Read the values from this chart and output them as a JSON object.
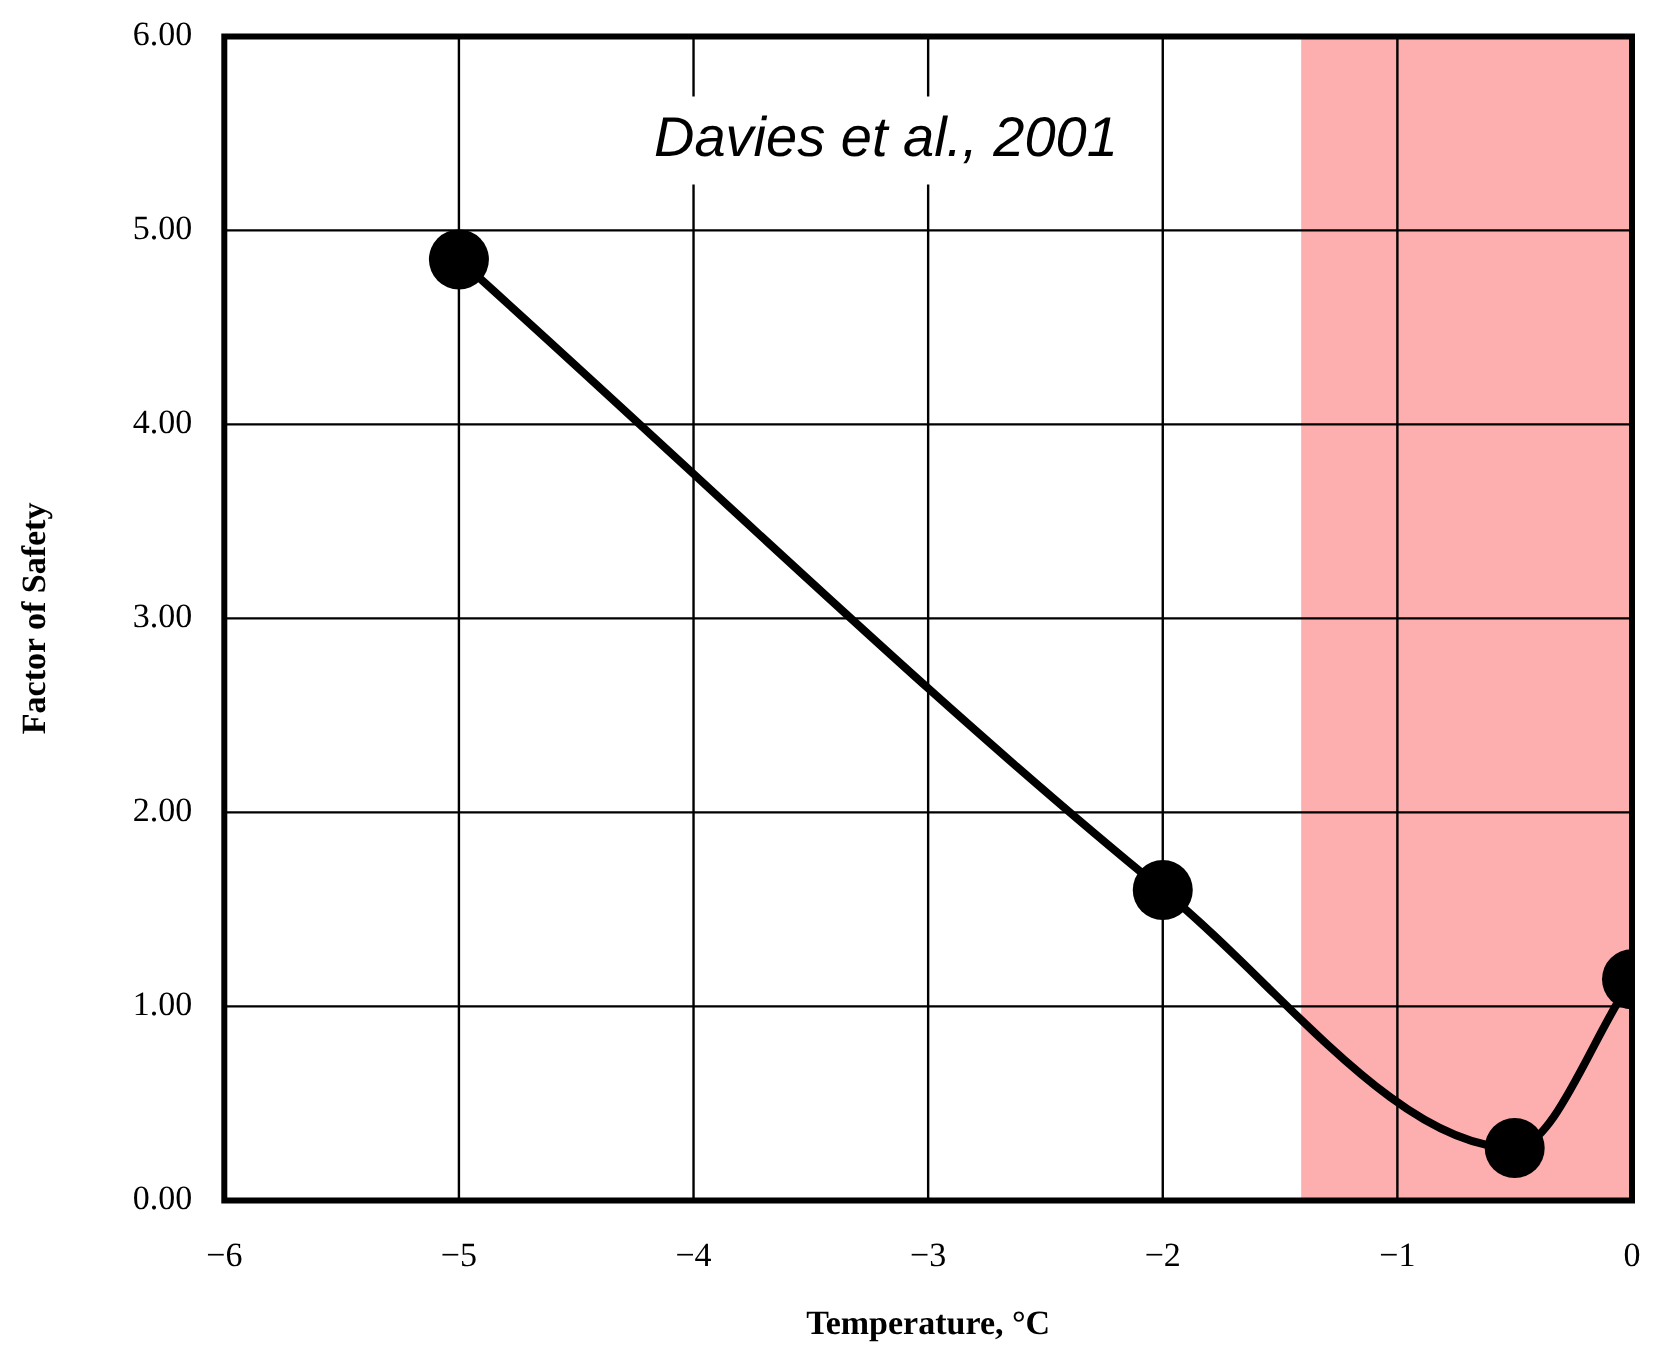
{
  "chart_data": {
    "type": "line",
    "xlabel": "Temperature, °C",
    "ylabel": "Factor of Safety",
    "annotations": [
      "Davies et al., 2001"
    ],
    "x": [
      -5,
      -2,
      -0.5,
      0
    ],
    "series": [
      {
        "color": "#000000",
        "values": [
          4.85,
          1.6,
          0.27,
          1.14
        ]
      }
    ],
    "xlim": [
      -6,
      0
    ],
    "ylim": [
      0,
      6
    ],
    "xticks": [
      {
        "value": -6,
        "label": "−6"
      },
      {
        "value": -5,
        "label": "−5"
      },
      {
        "value": -4,
        "label": "−4"
      },
      {
        "value": -3,
        "label": "−3"
      },
      {
        "value": -2,
        "label": "−2"
      },
      {
        "value": -1,
        "label": "−1"
      },
      0
    ],
    "yticks": [
      {
        "value": 0,
        "label": "0.00"
      },
      {
        "value": 1,
        "label": "1.00"
      },
      {
        "value": 2,
        "label": "2.00"
      },
      {
        "value": 3,
        "label": "3.00"
      },
      {
        "value": 4,
        "label": "4.00"
      },
      {
        "value": 5,
        "label": "5.00"
      },
      {
        "value": 6,
        "label": "6.00"
      }
    ],
    "bands": [
      {
        "axis": "x",
        "from": -1.41,
        "to": 0,
        "color": "#fdaeae"
      }
    ],
    "grid": true,
    "marker": "circle",
    "line_style": "solid",
    "legend": false
  }
}
